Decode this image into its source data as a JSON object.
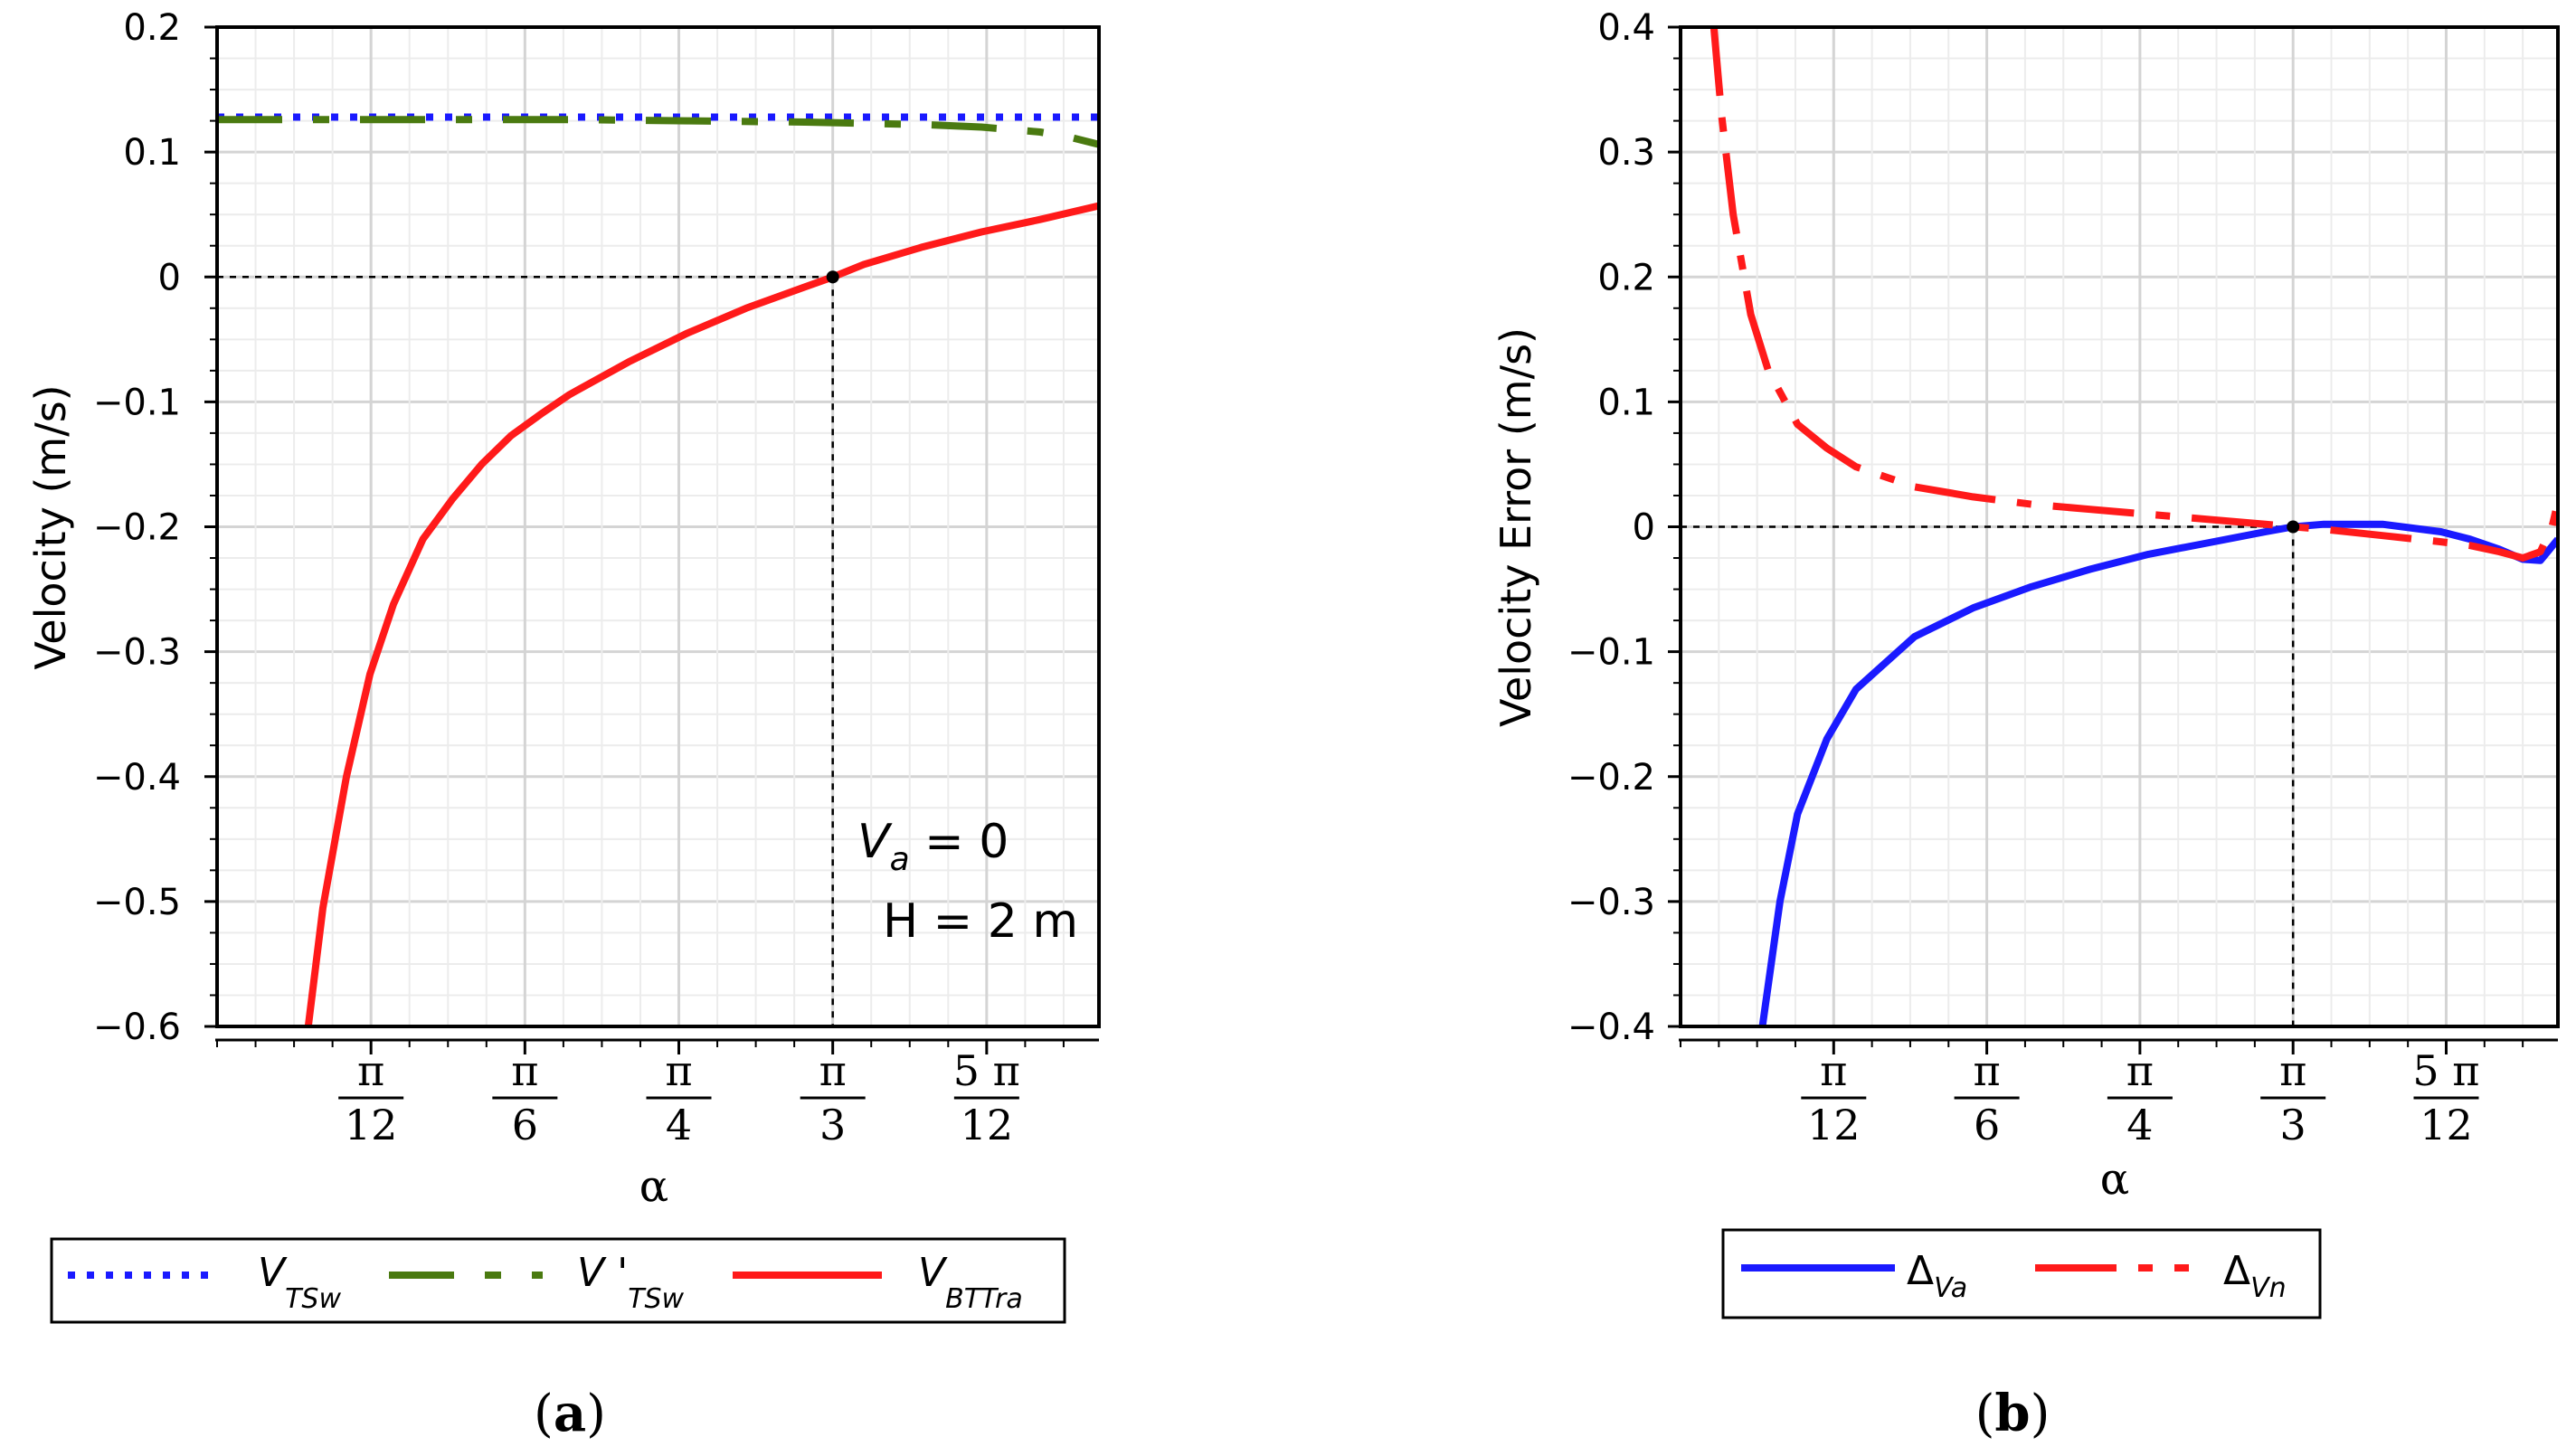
{
  "chart_data": [
    {
      "id": "a",
      "type": "line",
      "caption_letter": "a",
      "xlabel": "α",
      "ylabel": "Velocity (m/s)",
      "xlim": [
        0,
        1.5
      ],
      "ylim": [
        -0.6,
        0.2
      ],
      "yticks": [
        0.2,
        0.1,
        0,
        -0.1,
        -0.2,
        -0.3,
        -0.4,
        -0.5,
        -0.6
      ],
      "ytick_labels": [
        "0.2",
        "0.1",
        "0",
        "−0.1",
        "−0.2",
        "−0.3",
        "−0.4",
        "−0.5",
        "−0.6"
      ],
      "xticks": [
        {
          "value": 0.2618,
          "num": "π",
          "den": "12"
        },
        {
          "value": 0.5236,
          "num": "π",
          "den": "6"
        },
        {
          "value": 0.7854,
          "num": "π",
          "den": "4"
        },
        {
          "value": 1.0472,
          "num": "π",
          "den": "3"
        },
        {
          "value": 1.309,
          "num": "5 π",
          "den": "12"
        }
      ],
      "reference": {
        "x": 1.0472,
        "y": 0
      },
      "annotation": {
        "italic": "V",
        "sub": "a",
        "rest": " = 0",
        "line2": "H = 2 m"
      },
      "series": [
        {
          "name": "V TSw",
          "base": "V",
          "sub": "TSw",
          "color": "#1a1aff",
          "style": "dotted",
          "x": [
            0,
            0.25,
            0.5,
            0.75,
            1.0,
            1.25,
            1.5
          ],
          "y": [
            0.128,
            0.128,
            0.128,
            0.128,
            0.128,
            0.128,
            0.128
          ]
        },
        {
          "name": "V' TSw",
          "base": "V '",
          "sub": "TSw",
          "color": "#4a7a10",
          "style": "dashed",
          "x": [
            0,
            0.2,
            0.4,
            0.6,
            0.8,
            1.0,
            1.1,
            1.2,
            1.3,
            1.4,
            1.45,
            1.5
          ],
          "y": [
            0.126,
            0.126,
            0.126,
            0.126,
            0.125,
            0.124,
            0.123,
            0.122,
            0.12,
            0.116,
            0.112,
            0.106
          ]
        },
        {
          "name": "V BTTra",
          "base": "V",
          "sub": "BTTra",
          "color": "#ff1a1a",
          "style": "solid",
          "x": [
            0.155,
            0.18,
            0.22,
            0.26,
            0.3,
            0.35,
            0.4,
            0.45,
            0.5,
            0.55,
            0.6,
            0.7,
            0.8,
            0.9,
            1.0,
            1.0472,
            1.1,
            1.2,
            1.3,
            1.4,
            1.5
          ],
          "y": [
            -0.6,
            -0.505,
            -0.4,
            -0.318,
            -0.262,
            -0.21,
            -0.178,
            -0.15,
            -0.127,
            -0.11,
            -0.094,
            -0.068,
            -0.045,
            -0.025,
            -0.008,
            0,
            0.01,
            0.024,
            0.036,
            0.046,
            0.057
          ]
        }
      ]
    },
    {
      "id": "b",
      "type": "line",
      "caption_letter": "b",
      "xlabel": "α",
      "ylabel": "Velocity Error (m/s)",
      "xlim": [
        0,
        1.5
      ],
      "ylim": [
        -0.4,
        0.4
      ],
      "yticks": [
        0.4,
        0.3,
        0.2,
        0.1,
        0,
        -0.1,
        -0.2,
        -0.3,
        -0.4
      ],
      "ytick_labels": [
        "0.4",
        "0.3",
        "0.2",
        "0.1",
        "0",
        "−0.1",
        "−0.2",
        "−0.3",
        "−0.4"
      ],
      "xticks": [
        {
          "value": 0.2618,
          "num": "π",
          "den": "12"
        },
        {
          "value": 0.5236,
          "num": "π",
          "den": "6"
        },
        {
          "value": 0.7854,
          "num": "π",
          "den": "4"
        },
        {
          "value": 1.0472,
          "num": "π",
          "den": "3"
        },
        {
          "value": 1.309,
          "num": "5 π",
          "den": "12"
        }
      ],
      "reference": {
        "x": 1.0472,
        "y": 0
      },
      "series": [
        {
          "name": "Δ Va",
          "base": "Δ",
          "sub": "Va",
          "color": "#1a1aff",
          "style": "solid",
          "x": [
            0.14,
            0.17,
            0.2,
            0.25,
            0.3,
            0.4,
            0.5,
            0.6,
            0.7,
            0.8,
            0.9,
            1.0,
            1.0472,
            1.1,
            1.2,
            1.3,
            1.35,
            1.4,
            1.44,
            1.47,
            1.5
          ],
          "y": [
            -0.4,
            -0.3,
            -0.23,
            -0.17,
            -0.13,
            -0.088,
            -0.065,
            -0.048,
            -0.034,
            -0.022,
            -0.013,
            -0.004,
            0,
            0.002,
            0.002,
            -0.004,
            -0.01,
            -0.018,
            -0.026,
            -0.027,
            -0.01
          ]
        },
        {
          "name": "Δ Vn",
          "base": "Δ",
          "sub": "Vn",
          "color": "#ff1a1a",
          "style": "longdash",
          "x": [
            0.055,
            0.07,
            0.09,
            0.12,
            0.15,
            0.2,
            0.25,
            0.3,
            0.4,
            0.5,
            0.6,
            0.7,
            0.8,
            0.9,
            1.0,
            1.0472,
            1.1,
            1.2,
            1.3,
            1.35,
            1.4,
            1.44,
            1.47,
            1.49,
            1.5
          ],
          "y": [
            0.41,
            0.33,
            0.25,
            0.17,
            0.125,
            0.082,
            0.063,
            0.048,
            0.032,
            0.024,
            0.018,
            0.014,
            0.01,
            0.006,
            0.002,
            0,
            -0.002,
            -0.007,
            -0.012,
            -0.015,
            -0.02,
            -0.025,
            -0.02,
            0,
            0.02
          ]
        }
      ]
    }
  ]
}
